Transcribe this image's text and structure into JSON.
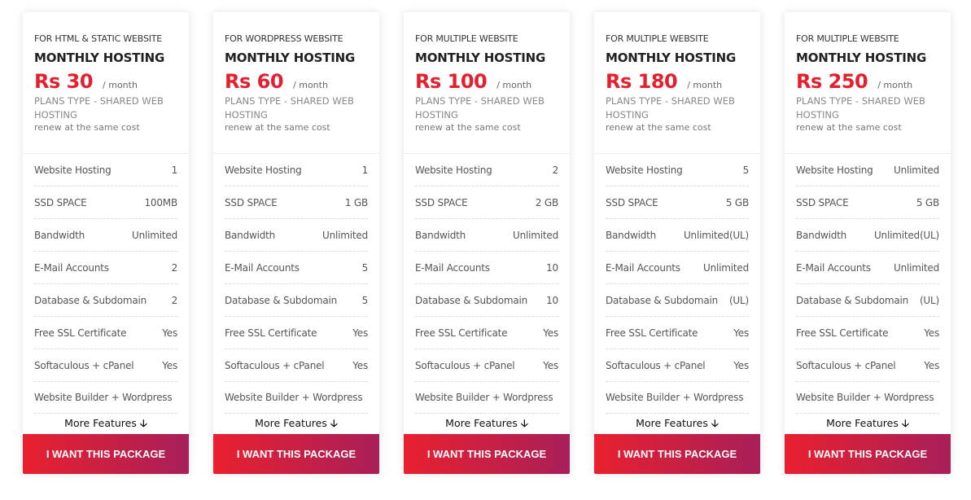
{
  "colors": {
    "accent": "#e4202f",
    "button_start": "#e9202f",
    "button_end": "#a81f59"
  },
  "more_label": "More Features",
  "more_icon": "arrow-down-icon",
  "button_label": "I WANT THIS PACKAGE",
  "plans": [
    {
      "for": "FOR HTML & STATIC WEBSITE",
      "title": "MONTHLY HOSTING",
      "price": "Rs 30",
      "period": "/ month",
      "type": "PLANS TYPE - SHARED WEB HOSTING",
      "renew": "renew at the same cost",
      "features": [
        [
          "Website Hosting",
          "1"
        ],
        [
          "SSD SPACE",
          "100MB"
        ],
        [
          "Bandwidth",
          "Unlimited"
        ],
        [
          "E-Mail Accounts",
          "2"
        ],
        [
          "Database & Subdomain",
          "2"
        ],
        [
          "Free SSL Certificate",
          "Yes"
        ],
        [
          "Softaculous + cPanel",
          "Yes"
        ],
        [
          "Website Builder + Wordpress",
          ""
        ]
      ]
    },
    {
      "for": "FOR WORDPRESS WEBSITE",
      "title": "MONTHLY HOSTING",
      "price": "Rs 60",
      "period": "/ month",
      "type": "PLANS TYPE - SHARED WEB HOSTING",
      "renew": "renew at the same cost",
      "features": [
        [
          "Website Hosting",
          "1"
        ],
        [
          "SSD SPACE",
          "1 GB"
        ],
        [
          "Bandwidth",
          "Unlimited"
        ],
        [
          "E-Mail Accounts",
          "5"
        ],
        [
          "Database & Subdomain",
          "5"
        ],
        [
          "Free SSL Certificate",
          "Yes"
        ],
        [
          "Softaculous + cPanel",
          "Yes"
        ],
        [
          "Website Builder + Wordpress",
          ""
        ]
      ]
    },
    {
      "for": "FOR MULTIPLE WEBSITE",
      "title": "MONTHLY HOSTING",
      "price": "Rs 100",
      "period": "/ month",
      "type": "PLANS TYPE - SHARED WEB HOSTING",
      "renew": "renew at the same cost",
      "features": [
        [
          "Website Hosting",
          "2"
        ],
        [
          "SSD SPACE",
          "2 GB"
        ],
        [
          "Bandwidth",
          "Unlimited"
        ],
        [
          "E-Mail Accounts",
          "10"
        ],
        [
          "Database & Subdomain",
          "10"
        ],
        [
          "Free SSL Certificate",
          "Yes"
        ],
        [
          "Softaculous + cPanel",
          "Yes"
        ],
        [
          "Website Builder + Wordpress",
          ""
        ]
      ]
    },
    {
      "for": "FOR MULTIPLE WEBSITE",
      "title": "MONTHLY HOSTING",
      "price": "Rs 180",
      "period": "/ month",
      "type": "PLANS TYPE - SHARED WEB HOSTING",
      "renew": "renew at the same cost",
      "features": [
        [
          "Website Hosting",
          "5"
        ],
        [
          "SSD SPACE",
          "5 GB"
        ],
        [
          "Bandwidth",
          "Unlimited(UL)"
        ],
        [
          "E-Mail Accounts",
          "Unlimited"
        ],
        [
          "Database & Subdomain",
          "(UL)"
        ],
        [
          "Free SSL Certificate",
          "Yes"
        ],
        [
          "Softaculous + cPanel",
          "Yes"
        ],
        [
          "Website Builder + Wordpress",
          ""
        ]
      ]
    },
    {
      "for": "FOR MULTIPLE WEBSITE",
      "title": "MONTHLY HOSTING",
      "price": "Rs 250",
      "period": "/ month",
      "type": "PLANS TYPE - SHARED WEB HOSTING",
      "renew": "renew at the same cost",
      "features": [
        [
          "Website Hosting",
          "Unlimited"
        ],
        [
          "SSD SPACE",
          "5 GB"
        ],
        [
          "Bandwidth",
          "Unlimited(UL)"
        ],
        [
          "E-Mail Accounts",
          "Unlimited"
        ],
        [
          "Database & Subdomain",
          "(UL)"
        ],
        [
          "Free SSL Certificate",
          "Yes"
        ],
        [
          "Softaculous + cPanel",
          "Yes"
        ],
        [
          "Website Builder + Wordpress",
          ""
        ]
      ]
    }
  ]
}
